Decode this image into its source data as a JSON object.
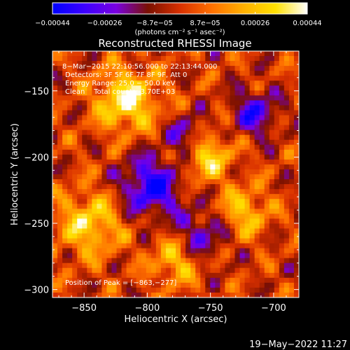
{
  "chart_data": {
    "type": "heatmap",
    "title": "Reconstructed RHESSI Image",
    "xlabel": "Heliocentric X (arcsec)",
    "ylabel": "Heliocentric Y (arcsec)",
    "xlim": [
      -875,
      -680
    ],
    "ylim": [
      -306,
      -120
    ],
    "x_ticks": [
      -850,
      -800,
      -750,
      -700
    ],
    "y_ticks": [
      -300,
      -250,
      -200,
      -150
    ],
    "x_tick_labels": [
      "−850",
      "−800",
      "−750",
      "−700"
    ],
    "y_tick_labels": [
      "−300",
      "−250",
      "−200",
      "−150"
    ],
    "colorbar": {
      "range": [
        -0.00044,
        0.00044
      ],
      "tick_values": [
        -0.00044,
        -0.00026,
        -8.7e-05,
        8.7e-05,
        0.00026,
        0.00044
      ],
      "tick_labels": [
        "−0.00044",
        "−0.00026",
        "−8.7e−05",
        "8.7e−05",
        "0.00026",
        "0.00044"
      ],
      "unit_label": "(photons cm⁻² s⁻¹ asec⁻²)",
      "colormap": [
        "#0000ff",
        "#3c00ff",
        "#7a00e0",
        "#7a1000",
        "#d83000",
        "#ff7000",
        "#ffb000",
        "#ffe000",
        "#ffffff"
      ]
    },
    "annotations": {
      "time": "8−Mar−2015 22:10:56.000 to 22:13:44.000",
      "detectors": "Detectors: 3F 5F 6F 7F 8F 9F, Att 0",
      "energy": "Energy Range: 25.0 − 50.0 keV",
      "method": "Clean    Total counts: 3.70E+03",
      "peak": "Position of Peak = [−863,−277]"
    },
    "peak": [
      -863,
      -277
    ]
  },
  "footer_date": "19−May−2022 11:27"
}
